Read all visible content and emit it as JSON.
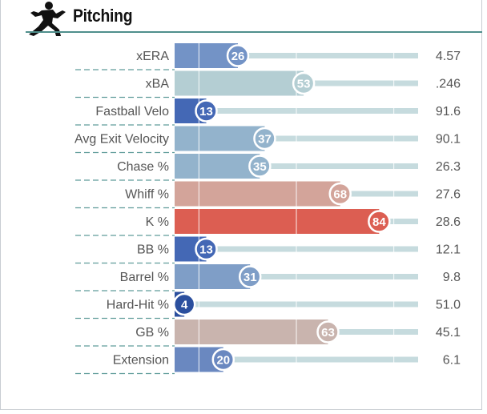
{
  "header": {
    "title": "Pitching"
  },
  "chart_data": {
    "type": "bar",
    "orientation": "horizontal",
    "xlim": [
      0,
      100
    ],
    "rows": [
      {
        "label": "xERA",
        "percentile": 26,
        "value": "4.57",
        "color": "#7393c6"
      },
      {
        "label": "xBA",
        "percentile": 53,
        "value": ".246",
        "color": "#b4ced3"
      },
      {
        "label": "Fastball Velo",
        "percentile": 13,
        "value": "91.6",
        "color": "#4468b5"
      },
      {
        "label": "Avg Exit Velocity",
        "percentile": 37,
        "value": "90.1",
        "color": "#93b3cc"
      },
      {
        "label": "Chase %",
        "percentile": 35,
        "value": "26.3",
        "color": "#93b3cc"
      },
      {
        "label": "Whiff %",
        "percentile": 68,
        "value": "27.6",
        "color": "#d3a49a"
      },
      {
        "label": "K %",
        "percentile": 84,
        "value": "28.6",
        "color": "#dc5e52"
      },
      {
        "label": "BB %",
        "percentile": 13,
        "value": "12.1",
        "color": "#4468b5"
      },
      {
        "label": "Barrel %",
        "percentile": 31,
        "value": "9.8",
        "color": "#7f9ec7"
      },
      {
        "label": "Hard-Hit %",
        "percentile": 4,
        "value": "51.0",
        "color": "#2b4f9e"
      },
      {
        "label": "GB %",
        "percentile": 63,
        "value": "45.1",
        "color": "#c9b4ae"
      },
      {
        "label": "Extension",
        "percentile": 20,
        "value": "6.1",
        "color": "#6a88c0"
      }
    ]
  }
}
